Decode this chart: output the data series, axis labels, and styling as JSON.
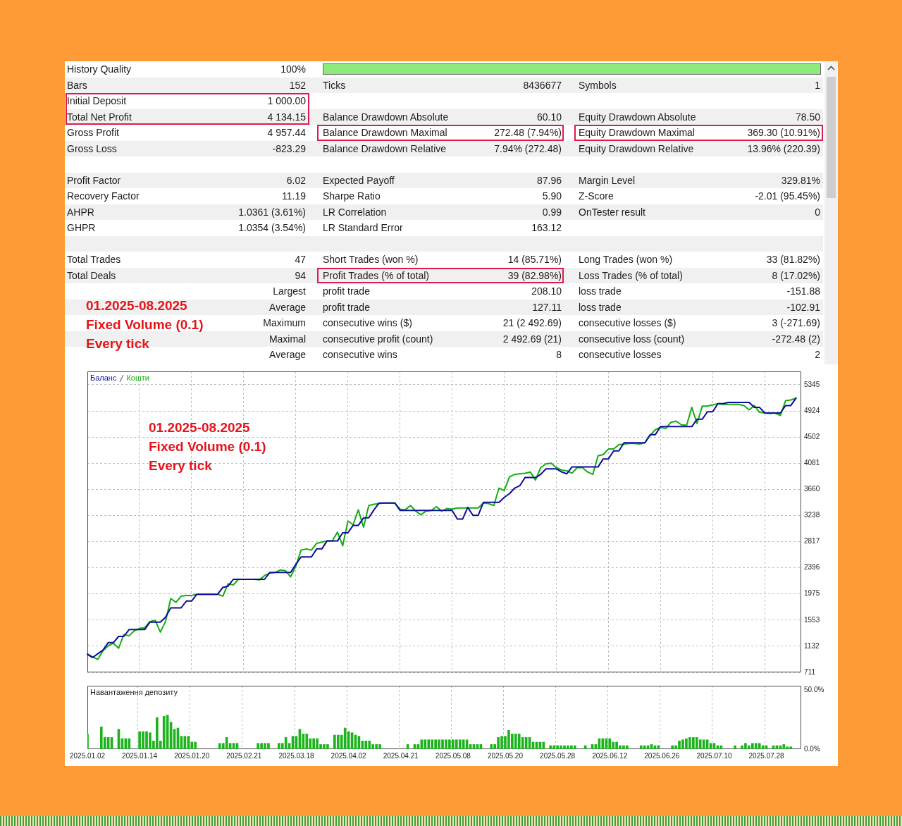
{
  "chart_data": [
    {
      "type": "other",
      "annotations": [
        "History Quality",
        "100%",
        "Bars",
        "152",
        "Ticks",
        "8436677",
        "Symbols",
        "1",
        "Initial Deposit",
        "1 000.00",
        "Total Net Profit",
        "4 134.15",
        "Balance Drawdown Absolute",
        "60.10",
        "Equity Drawdown Absolute",
        "78.50",
        "Gross Profit",
        "4 957.44",
        "Balance Drawdown Maximal",
        "272.48 (7.94%)",
        "Equity Drawdown Maximal",
        "369.30 (10.91%)",
        "Gross Loss",
        "-823.29",
        "Balance Drawdown Relative",
        "7.94% (272.48)",
        "Equity Drawdown Relative",
        "13.96% (220.39)",
        "Profit Factor",
        "6.02",
        "Expected Payoff",
        "87.96",
        "Margin Level",
        "329.81%",
        "Recovery Factor",
        "11.19",
        "Sharpe Ratio",
        "5.90",
        "Z-Score",
        "-2.01 (95.45%)",
        "AHPR",
        "1.0361 (3.61%)",
        "LR Correlation",
        "0.99",
        "OnTester result",
        "0",
        "GHPR",
        "1.0354 (3.54%)",
        "LR Standard Error",
        "163.12",
        "Total Trades",
        "47",
        "Short Trades (won %)",
        "14 (85.71%)",
        "Long Trades (won %)",
        "33 (81.82%)",
        "Total Deals",
        "94",
        "Profit Trades (% of total)",
        "39 (82.98%)",
        "Loss Trades (% of total)",
        "8 (17.02%)",
        "Largest",
        "profit trade",
        "208.10",
        "loss trade",
        "-151.88",
        "Average",
        "profit trade",
        "127.11",
        "loss trade",
        "-102.91",
        "Maximum",
        "consecutive wins ($)",
        "21 (2 492.69)",
        "consecutive losses ($)",
        "3 (-271.69)",
        "Maximal",
        "consecutive profit (count)",
        "2 492.69 (21)",
        "consecutive loss (count)",
        "-272.48 (2)",
        "Average",
        "consecutive wins",
        "8",
        "consecutive losses",
        "2",
        "01.2025-08.2025",
        "Fixed Volume (0.1)",
        "Every tick"
      ]
    },
    {
      "type": "line",
      "categories": [
        "2025.01.02",
        null,
        null,
        null,
        null,
        null,
        null,
        null,
        null,
        null,
        "2025.01.14",
        null,
        null,
        null,
        null,
        null,
        null,
        null,
        null,
        null,
        "2025.01.20",
        null,
        null,
        null,
        null,
        null,
        null,
        null,
        null,
        null,
        "2025.02.21",
        null,
        null,
        null,
        null,
        null,
        null,
        null,
        null,
        null,
        "2025.03.18",
        null,
        null,
        null,
        null,
        null,
        null,
        null,
        null,
        null,
        "2025.04.02",
        null,
        null,
        null,
        null,
        null,
        null,
        null,
        null,
        null,
        "2025.04.21",
        null,
        null,
        null,
        null,
        null,
        null,
        null,
        null,
        null,
        "2025.05.08",
        null,
        null,
        null,
        null,
        null,
        null,
        null,
        null,
        null,
        "2025.05.20",
        null,
        null,
        null,
        null,
        null,
        null,
        null,
        null,
        null,
        "2025.05.28",
        null,
        null,
        null,
        null,
        null,
        null,
        null,
        null,
        null,
        "2025.06.12",
        null,
        null,
        null,
        null,
        null,
        null,
        null,
        null,
        null,
        "2025.06.26",
        null,
        null,
        null,
        null,
        null,
        null,
        null,
        null,
        null,
        "2025.07.10",
        null,
        null,
        null,
        null,
        null,
        null,
        null,
        null,
        null,
        "2025.07.28",
        null,
        null,
        null,
        null,
        null,
        null,
        null
      ],
      "series": [
        {
          "name": "Баланс",
          "color": "#0c0c9c",
          "values": [
            1000,
            950,
            1010,
            1070,
            1190,
            1190,
            1290,
            1290,
            1400,
            1400,
            1400,
            1400,
            1520,
            1520,
            1520,
            1600,
            1750,
            1750,
            1750,
            1860,
            1860,
            1970,
            1970,
            1970,
            1970,
            1970,
            2080,
            2100,
            2210,
            2210,
            2210,
            2210,
            2210,
            2210,
            2210,
            2320,
            2320,
            2320,
            2320,
            2320,
            2450,
            2570,
            2570,
            2570,
            2700,
            2700,
            2830,
            2830,
            2830,
            2960,
            2960,
            3080,
            3080,
            3200,
            3200,
            3330,
            3440,
            3440,
            3440,
            3440,
            3320,
            3320,
            3320,
            3320,
            3320,
            3320,
            3320,
            3320,
            3320,
            3320,
            3320,
            3180,
            3180,
            3370,
            3240,
            3240,
            3450,
            3450,
            3450,
            3450,
            3530,
            3590,
            3680,
            3720,
            3850,
            3850,
            3850,
            3900,
            3990,
            3990,
            3990,
            3940,
            3910,
            4020,
            4020,
            4020,
            4020,
            4020,
            4020,
            4150,
            4150,
            4280,
            4280,
            4410,
            4410,
            4410,
            4410,
            4410,
            4540,
            4540,
            4670,
            4670,
            4670,
            4670,
            4670,
            4670,
            4670,
            4790,
            4790,
            4910,
            4910,
            5040,
            5040,
            5060,
            5060,
            5060,
            5060,
            5060,
            4980,
            4980,
            4890,
            4890,
            4890,
            4890,
            5010,
            5010,
            5130,
            null
          ]
        },
        {
          "name": "Кошти",
          "color": "#12ad12",
          "values": [
            1010,
            960,
            920,
            1060,
            1140,
            1180,
            1100,
            1320,
            1300,
            1380,
            1420,
            1430,
            1530,
            1550,
            1360,
            1530,
            1900,
            1840,
            1940,
            1950,
            1950,
            1970,
            1970,
            1970,
            1970,
            1970,
            1940,
            2140,
            2120,
            2210,
            2210,
            2210,
            2210,
            2200,
            2270,
            2310,
            2320,
            2360,
            2350,
            2250,
            2420,
            2680,
            2700,
            2680,
            2790,
            2810,
            2830,
            2830,
            2970,
            2750,
            3150,
            3090,
            3330,
            3050,
            3400,
            3420,
            3430,
            3440,
            3440,
            3440,
            3340,
            3330,
            3400,
            3310,
            3250,
            3310,
            3320,
            3380,
            3310,
            3350,
            3340,
            3360,
            3360,
            3360,
            3360,
            3360,
            3440,
            3430,
            3400,
            3680,
            3640,
            3860,
            3900,
            3910,
            3920,
            3940,
            3810,
            4010,
            4070,
            4080,
            4010,
            3970,
            3960,
            3920,
            4010,
            4010,
            3940,
            3900,
            4200,
            4220,
            4310,
            4310,
            4380,
            4390,
            4400,
            4400,
            4390,
            4410,
            4530,
            4620,
            4660,
            4640,
            4740,
            4760,
            4700,
            4690,
            4980,
            4720,
            5000,
            5000,
            5020,
            5040,
            5030,
            5030,
            5030,
            5030,
            5010,
            4940,
            5010,
            4900,
            4890,
            4880,
            4890,
            4850,
            5090,
            5100,
            5130,
            null
          ]
        }
      ],
      "ylim": [
        711,
        5560
      ],
      "yticks": [
        711,
        1132,
        1553,
        1975,
        2396,
        2817,
        3238,
        3660,
        4081,
        4502,
        4924,
        5345
      ],
      "grid": true,
      "legend": "top left",
      "tick_labels": "y",
      "annotations": [
        "01.2025-08.2025",
        "Fixed Volume (0.1)",
        "Every tick"
      ]
    },
    {
      "type": "bar",
      "title": "Навантаження депозиту",
      "categories": [
        "2025.01.02",
        null,
        null,
        null,
        null,
        null,
        null,
        null,
        null,
        null,
        null,
        null,
        null,
        null,
        null,
        "2025.01.14",
        null,
        null,
        null,
        null,
        null,
        null,
        null,
        null,
        null,
        null,
        null,
        null,
        null,
        null,
        "2025.01.20",
        null,
        null,
        null,
        null,
        null,
        null,
        null,
        null,
        null,
        null,
        null,
        null,
        null,
        null,
        "2025.02.21",
        null,
        null,
        null,
        null,
        null,
        null,
        null,
        null,
        null,
        null,
        null,
        null,
        null,
        null,
        "2025.03.18",
        null,
        null,
        null,
        null,
        null,
        null,
        null,
        null,
        null,
        null,
        null,
        null,
        null,
        null,
        "2025.04.02",
        null,
        null,
        null,
        null,
        null,
        null,
        null,
        null,
        null,
        null,
        null,
        null,
        null,
        null,
        "2025.04.21",
        null,
        null,
        null,
        null,
        null,
        null,
        null,
        null,
        null,
        null,
        null,
        null,
        null,
        null,
        "2025.05.08",
        null,
        null,
        null,
        null,
        null,
        null,
        null,
        null,
        null,
        null,
        null,
        null,
        null,
        null,
        "2025.05.20",
        null,
        null,
        null,
        null,
        null,
        null,
        null,
        null,
        null,
        null,
        null,
        null,
        null,
        null,
        "2025.05.28",
        null,
        null,
        null,
        null,
        null,
        null,
        null,
        null,
        null,
        null,
        null,
        null,
        null,
        null,
        "2025.06.12",
        null,
        null,
        null,
        null,
        null,
        null,
        null,
        null,
        null,
        null,
        null,
        null,
        null,
        null,
        "2025.06.26",
        null,
        null,
        null,
        null,
        null,
        null,
        null,
        null,
        null,
        null,
        null,
        null,
        null,
        null,
        "2025.07.10",
        null,
        null,
        null,
        null,
        null,
        null,
        null,
        null,
        null,
        null,
        null,
        null,
        null,
        null,
        "2025.07.28",
        null,
        null,
        null,
        null,
        null,
        null,
        null,
        null,
        null,
        null
      ],
      "values": [
        13,
        null,
        null,
        null,
        19,
        10,
        10,
        10,
        null,
        17,
        9,
        9,
        9,
        null,
        null,
        15,
        15,
        15,
        14,
        7,
        27,
        7,
        28,
        29,
        23,
        17,
        18,
        11,
        11,
        11,
        6,
        6,
        null,
        null,
        null,
        null,
        null,
        null,
        5,
        5,
        10,
        5,
        5,
        5,
        null,
        null,
        null,
        null,
        null,
        5,
        5,
        5,
        5,
        null,
        null,
        5,
        5,
        10,
        5,
        11,
        11,
        17,
        13,
        13,
        9,
        9,
        9,
        4,
        4,
        4,
        null,
        12,
        12,
        12,
        18,
        15,
        14,
        12,
        11,
        7,
        7,
        7,
        4,
        4,
        4,
        null,
        null,
        null,
        null,
        null,
        null,
        null,
        4,
        null,
        4,
        4,
        8,
        8,
        8,
        8,
        8,
        8,
        8,
        8,
        8,
        8,
        8,
        8,
        8,
        8,
        4,
        4,
        4,
        4,
        null,
        null,
        4,
        4,
        10,
        11,
        11,
        16,
        13,
        13,
        13,
        10,
        10,
        10,
        6,
        6,
        6,
        6,
        null,
        3,
        3,
        3,
        3,
        3,
        3,
        3,
        3,
        null,
        null,
        3,
        null,
        4,
        4,
        9,
        9,
        9,
        9,
        6,
        6,
        3,
        3,
        3,
        null,
        null,
        null,
        3,
        3,
        3,
        4,
        3,
        3,
        null,
        null,
        null,
        3,
        3,
        7,
        8,
        9,
        10,
        10,
        10,
        8,
        8,
        8,
        5,
        5,
        3,
        3,
        null,
        null,
        null,
        3,
        null,
        3,
        5,
        3,
        5,
        5,
        5,
        3,
        3,
        null,
        3,
        3,
        3,
        4,
        2,
        2,
        null,
        null,
        null
      ],
      "color": "#1db31d",
      "ylim": [
        0,
        54
      ],
      "yticks": [
        {
          "value": 0,
          "label": "0.0%"
        },
        {
          "value": 50,
          "label": "50.0%"
        }
      ],
      "grid": "x"
    }
  ]
}
